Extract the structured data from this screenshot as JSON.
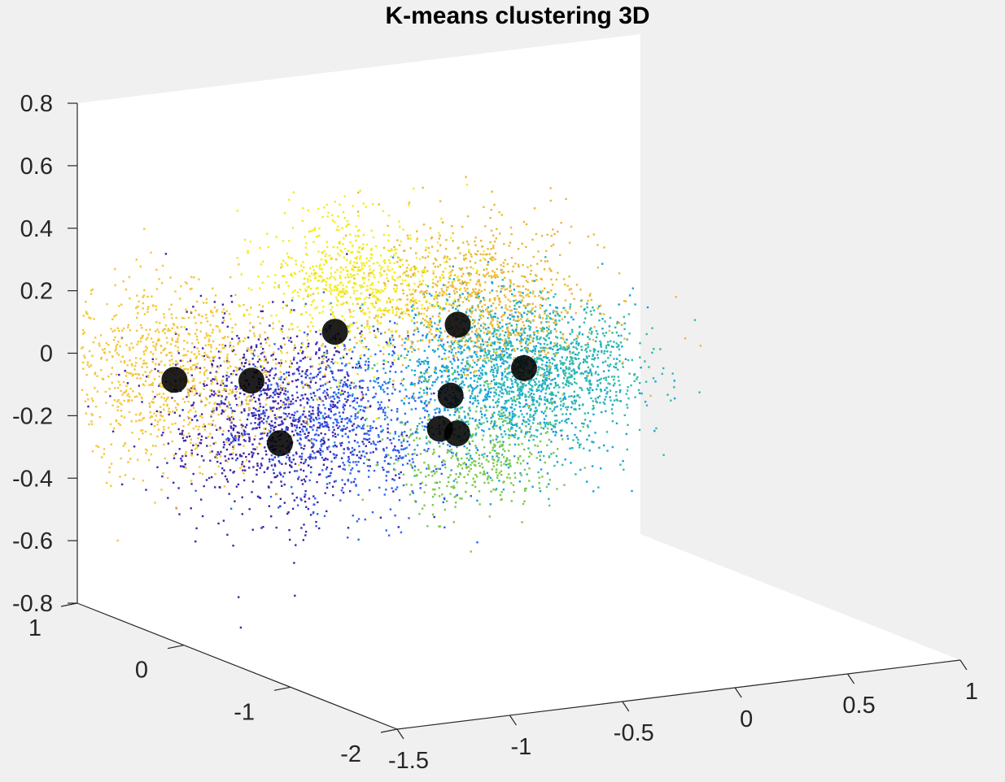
{
  "chart_data": {
    "type": "scatter",
    "projection": "3d",
    "title": "K-means clustering 3D",
    "xlabel": "",
    "ylabel": "",
    "zlabel": "",
    "xlim": [
      -1.5,
      1
    ],
    "ylim": [
      -2,
      1
    ],
    "zlim": [
      -0.8,
      0.8
    ],
    "x_ticks": [
      "-1.5",
      "-1",
      "-0.5",
      "0",
      "0.5",
      "1"
    ],
    "y_ticks": [
      "-2",
      "-1",
      "0",
      "1"
    ],
    "z_ticks": [
      "-0.8",
      "-0.6",
      "-0.4",
      "-0.2",
      "0",
      "0.2",
      "0.4",
      "0.6",
      "0.8"
    ],
    "grid": false,
    "colormap": "parula",
    "clusters": [
      {
        "color": "#3e26a8",
        "center": [
          -1.05,
          0.1,
          -0.12
        ],
        "spread": [
          0.22,
          0.28,
          0.14
        ],
        "count": 1100
      },
      {
        "color": "#2e64f4",
        "center": [
          -0.9,
          -0.3,
          -0.1
        ],
        "spread": [
          0.22,
          0.28,
          0.13
        ],
        "count": 700
      },
      {
        "color": "#15a2d9",
        "center": [
          -0.35,
          -0.5,
          0.02
        ],
        "spread": [
          0.22,
          0.28,
          0.12
        ],
        "count": 1100
      },
      {
        "color": "#2fbbaa",
        "center": [
          -0.2,
          -0.6,
          0.05
        ],
        "spread": [
          0.2,
          0.25,
          0.11
        ],
        "count": 1000
      },
      {
        "color": "#7bc94a",
        "center": [
          -0.45,
          -0.5,
          -0.22
        ],
        "spread": [
          0.16,
          0.2,
          0.09
        ],
        "count": 400
      },
      {
        "color": "#eab936",
        "center": [
          -0.35,
          -0.3,
          0.25
        ],
        "spread": [
          0.22,
          0.3,
          0.11
        ],
        "count": 900
      },
      {
        "color": "#f5c637",
        "center": [
          -1.35,
          0.4,
          0.0
        ],
        "spread": [
          0.24,
          0.3,
          0.14
        ],
        "count": 1000
      },
      {
        "color": "#f4ec1e",
        "center": [
          -0.75,
          0.0,
          0.3
        ],
        "spread": [
          0.18,
          0.22,
          0.11
        ],
        "count": 700
      }
    ],
    "centroids": [
      [
        -1.4,
        0.3,
        0.0
      ],
      [
        -1.2,
        0.0,
        0.02
      ],
      [
        -0.82,
        0.02,
        0.14
      ],
      [
        -1.05,
        0.05,
        -0.2
      ],
      [
        -0.45,
        -0.35,
        0.18
      ],
      [
        -0.25,
        -0.55,
        0.05
      ],
      [
        -0.6,
        -0.6,
        0.0
      ],
      [
        -0.6,
        -0.5,
        -0.12
      ],
      [
        -0.5,
        -0.45,
        -0.15
      ]
    ],
    "centroid_color": "#000000"
  }
}
